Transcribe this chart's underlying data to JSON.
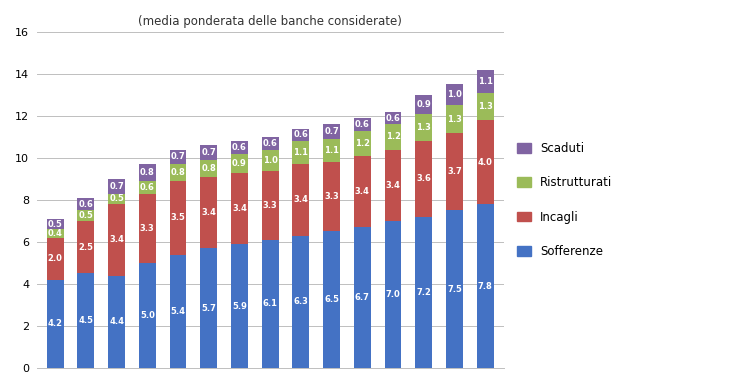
{
  "categories": [
    "",
    "",
    "",
    "",
    "",
    "",
    "",
    "",
    "",
    "",
    "",
    "",
    "",
    "",
    ""
  ],
  "sofferenze": [
    4.2,
    4.5,
    4.4,
    5.0,
    5.4,
    5.7,
    5.9,
    6.1,
    6.3,
    6.5,
    6.7,
    7.0,
    7.2,
    7.5,
    7.8
  ],
  "incagli": [
    2.0,
    2.5,
    3.4,
    3.3,
    3.5,
    3.4,
    3.4,
    3.3,
    3.4,
    3.3,
    3.4,
    3.4,
    3.6,
    3.7,
    4.0
  ],
  "ristrutturati": [
    0.4,
    0.5,
    0.5,
    0.6,
    0.8,
    0.8,
    0.9,
    1.0,
    1.1,
    1.1,
    1.2,
    1.2,
    1.3,
    1.3,
    1.3
  ],
  "scaduti": [
    0.5,
    0.6,
    0.7,
    0.8,
    0.7,
    0.7,
    0.6,
    0.6,
    0.6,
    0.7,
    0.6,
    0.6,
    0.9,
    1.0,
    1.1
  ],
  "color_sofferenze": "#4472C4",
  "color_incagli": "#C0504D",
  "color_ristrutturati": "#9BBB59",
  "color_scaduti": "#8064A2",
  "title": "(media ponderata delle banche considerate)",
  "ylim": [
    0,
    16
  ],
  "yticks": [
    0,
    2,
    4,
    6,
    8,
    10,
    12,
    14,
    16
  ],
  "background_color": "#FFFFFF",
  "grid_color": "#BFBFBF",
  "bar_width": 0.55,
  "label_fontsize": 6.0,
  "title_fontsize": 8.5,
  "legend_fontsize": 8.5
}
